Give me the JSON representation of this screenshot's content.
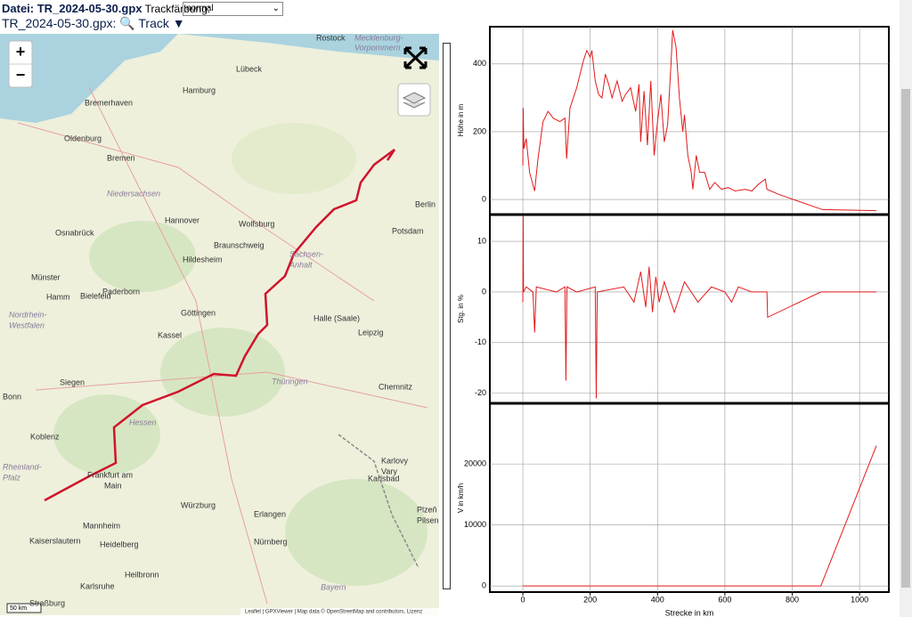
{
  "header": {
    "file_label": "Datei: TR_2024-05-30.gpx",
    "color_label": "Trackfärbung:",
    "color_option": "normal",
    "track_file": "TR_2024-05-30.gpx:",
    "track_button": "Track ▼"
  },
  "map": {
    "zoom_in": "+",
    "zoom_out": "−",
    "scale": "50 km",
    "attribution": "Leaflet | GPXViewer | Map data © OpenStreetMap and contributors, Lizenz",
    "labels": [
      "Rostock",
      "Mecklenburg-",
      "Vorpommern",
      "Lübeck",
      "Hamburg",
      "Bremerhaven",
      "Oldenburg",
      "Bremen",
      "Niedersachsen",
      "Hannover",
      "Wolfsburg",
      "Berlin",
      "Osnabrück",
      "Braunschweig",
      "Potsdam",
      "Hildesheim",
      "Bielefeld",
      "Münster",
      "Hamm",
      "Paderborn",
      "Sachsen-",
      "Anhalt",
      "Nordrhein-",
      "Westfalen",
      "Göttingen",
      "Halle (Saale)",
      "Kassel",
      "Leipzig",
      "Siegen",
      "Thüringen",
      "Chemnitz",
      "Bonn",
      "Hessen",
      "Koblenz",
      "Frankfurt am",
      "Main",
      "Rheinland-",
      "Pfalz",
      "Karlovy",
      "Vary",
      "Karlsbad",
      "Würzburg",
      "Erlangen",
      "Plzeň",
      "Pilsen",
      "Mannheim",
      "Heidelberg",
      "Kaiserslautern",
      "Nürnberg",
      "Heilbronn",
      "Karlsruhe",
      "Bayern",
      "Straßburg"
    ]
  },
  "chart_data": [
    {
      "type": "line",
      "y_label": "Höhe in m",
      "color": "#e31a1c",
      "xlim": [
        -98,
        1087
      ],
      "xticks": [
        0,
        200,
        400,
        600,
        800,
        1000
      ],
      "ylim": [
        -42,
        510
      ],
      "yticks": [
        0,
        200,
        400
      ],
      "grid": true,
      "x": [
        0,
        1,
        3,
        10,
        20,
        35,
        45,
        60,
        75,
        90,
        110,
        125,
        130,
        140,
        160,
        180,
        190,
        200,
        205,
        215,
        225,
        235,
        245,
        255,
        265,
        280,
        295,
        305,
        320,
        335,
        345,
        350,
        360,
        370,
        380,
        390,
        400,
        410,
        420,
        430,
        440,
        445,
        455,
        465,
        475,
        480,
        490,
        500,
        505,
        515,
        525,
        540,
        555,
        570,
        590,
        610,
        630,
        660,
        680,
        700,
        720,
        725,
        760,
        890,
        1050
      ],
      "values": [
        100,
        270,
        150,
        180,
        80,
        25,
        120,
        230,
        260,
        240,
        230,
        240,
        120,
        270,
        330,
        410,
        440,
        420,
        440,
        350,
        310,
        300,
        370,
        340,
        300,
        350,
        290,
        310,
        330,
        260,
        340,
        170,
        320,
        160,
        350,
        130,
        230,
        310,
        170,
        220,
        400,
        500,
        450,
        300,
        200,
        250,
        130,
        80,
        30,
        130,
        80,
        80,
        30,
        50,
        30,
        35,
        25,
        30,
        25,
        45,
        60,
        30,
        15,
        -30,
        -33
      ]
    },
    {
      "type": "line",
      "y_label": "Stg. in %",
      "color": "#e31a1c",
      "xlim": [
        -98,
        1087
      ],
      "xticks": [
        0,
        200,
        400,
        600,
        800,
        1000
      ],
      "ylim": [
        -21.8,
        15.1
      ],
      "yticks": [
        -20,
        -10,
        0,
        10
      ],
      "grid": true,
      "x": [
        0,
        1,
        2,
        10,
        30,
        35,
        40,
        100,
        125,
        128,
        131,
        160,
        215,
        218,
        221,
        300,
        330,
        350,
        365,
        375,
        385,
        395,
        405,
        420,
        450,
        480,
        520,
        560,
        600,
        620,
        640,
        680,
        725,
        727,
        885,
        1050
      ],
      "values": [
        -2,
        15,
        0,
        1,
        0,
        -8,
        1,
        0,
        1,
        -17.5,
        1,
        0,
        1,
        -21,
        0,
        1,
        -2,
        4,
        -3,
        5,
        -4,
        3,
        -2,
        2,
        -4,
        2,
        -2,
        1,
        0,
        -2,
        1,
        0,
        0,
        -5,
        0,
        0
      ]
    },
    {
      "type": "line",
      "y_label": "V in km/h",
      "x_label": "Strecke in km",
      "color": "#e31a1c",
      "xlim": [
        -98,
        1087
      ],
      "xticks": [
        0,
        200,
        400,
        600,
        800,
        1000
      ],
      "ylim": [
        -1000,
        29800
      ],
      "yticks": [
        0,
        10000,
        20000
      ],
      "grid": true,
      "x": [
        0,
        885,
        1050
      ],
      "values": [
        0,
        0,
        23000
      ]
    }
  ]
}
